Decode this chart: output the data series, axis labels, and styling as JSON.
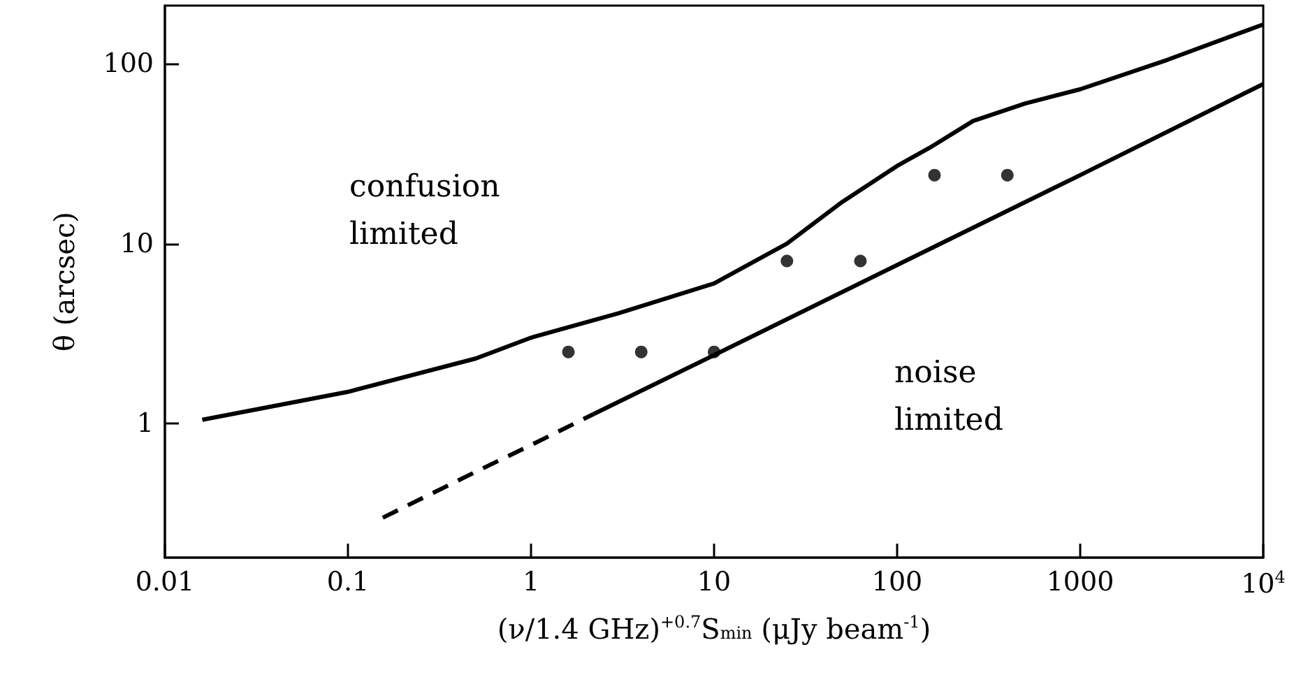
{
  "chart_data": {
    "type": "line",
    "xlabel": "(ν/1.4 GHz)$^{+0.7}$S$_{min}$ (μJy beam$^{-1}$)",
    "ylabel": "θ (arcsec)",
    "log": "xy",
    "xlim": [
      0.01,
      10000
    ],
    "ylim": [
      0.18,
      210
    ],
    "xticks": [
      0.01,
      0.1,
      1,
      10,
      100,
      1000,
      {
        "value": 10000,
        "label": "10$^{4}$"
      }
    ],
    "yticks": [
      1,
      10,
      100
    ],
    "annotations": [
      "confusion\nlimited",
      "noise\nlimited"
    ],
    "series": [
      {
        "color": "#000000",
        "line_style": "solid",
        "marker": "none",
        "x": [
          0.016,
          0.1,
          0.5,
          1,
          3,
          10,
          25,
          50,
          100,
          150,
          260,
          500,
          1000,
          3000,
          10000
        ],
        "values": [
          1.05,
          1.5,
          2.3,
          3.0,
          4.1,
          6.0,
          10,
          17,
          27,
          34,
          48,
          60,
          72,
          105,
          165
        ]
      },
      {
        "color": "#000000",
        "line_style": "dashed",
        "marker": "none",
        "x": [
          0.155,
          0.5,
          1,
          2.2
        ],
        "values": [
          0.3,
          0.54,
          0.76,
          1.13
        ]
      },
      {
        "color": "#000000",
        "line_style": "solid",
        "marker": "none",
        "x": [
          2.2,
          10,
          100,
          1000,
          10000
        ],
        "values": [
          1.13,
          2.4,
          7.6,
          24,
          77
        ]
      },
      {
        "type": "scatter",
        "color": "#000000",
        "marker": "circle",
        "x": [
          1.6,
          4,
          10,
          25,
          63,
          160,
          400
        ],
        "values": [
          2.5,
          2.5,
          2.5,
          8,
          8,
          24,
          24
        ]
      }
    ]
  }
}
